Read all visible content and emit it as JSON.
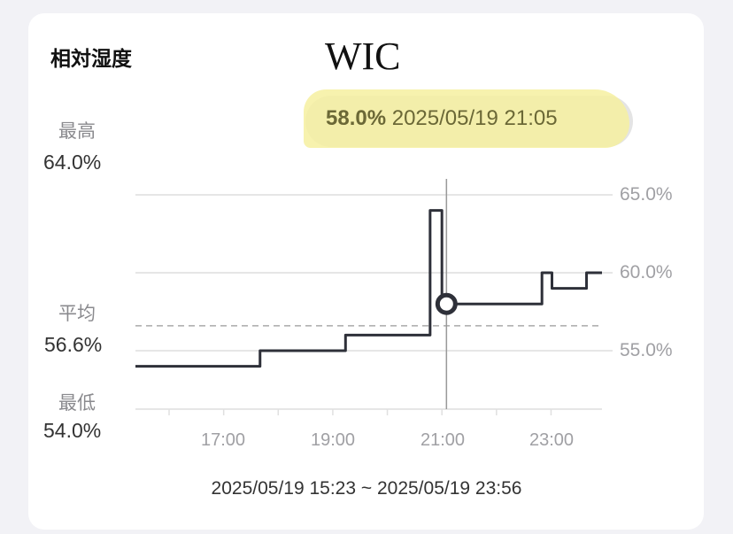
{
  "card": {
    "title": "相対湿度",
    "logo_text": "WIC",
    "tooltip": {
      "value": "58.0%",
      "datetime": "2025/05/19 21:05",
      "highlight_color": "#f6f0a0"
    },
    "stats": {
      "max_label": "最高",
      "max_value": "64.0%",
      "avg_label": "平均",
      "avg_value": "56.6%",
      "min_label": "最低",
      "min_value": "54.0%"
    },
    "range_text": "2025/05/19 15:23 ~ 2025/05/19 23:56"
  },
  "chart_data": {
    "type": "line",
    "step": true,
    "x_range": [
      "15:23",
      "23:56"
    ],
    "ylim": [
      52.6,
      66.1
    ],
    "y_ticks": [
      "65.0%",
      "60.0%",
      "55.0%"
    ],
    "y_tick_values": [
      65,
      60,
      55
    ],
    "x_ticks": [
      "17:00",
      "19:00",
      "21:00",
      "23:00"
    ],
    "average": 56.6,
    "selected": {
      "time": "21:05",
      "value": 58.0
    },
    "line_color": "#2e3039",
    "grid": true,
    "series": [
      {
        "points": [
          [
            "15:23",
            54
          ],
          [
            "17:40",
            55
          ],
          [
            "19:14",
            56
          ],
          [
            "20:47",
            64
          ],
          [
            "21:00",
            58
          ],
          [
            "22:50",
            60
          ],
          [
            "23:01",
            59
          ],
          [
            "23:39",
            60
          ],
          [
            "23:56",
            60
          ]
        ]
      }
    ]
  }
}
